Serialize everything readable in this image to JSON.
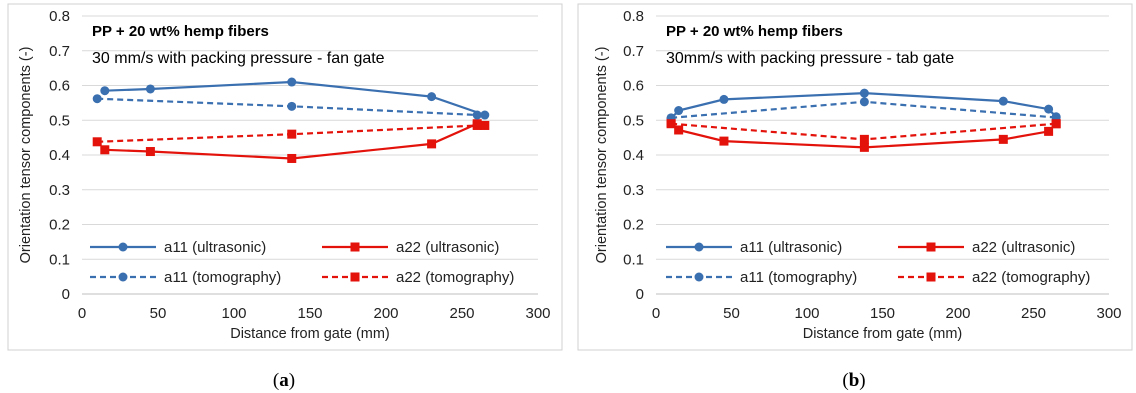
{
  "chart_data": [
    {
      "type": "line",
      "caption": "a",
      "title": "PP + 20 wt% hemp fibers",
      "subtitle": "30 mm/s with packing pressure - fan gate",
      "xlabel": "Distance from gate (mm)",
      "ylabel": "Orientation tensor components (-)",
      "xlim": [
        0,
        300
      ],
      "ylim": [
        0,
        0.8
      ],
      "xticks": [
        "0",
        "50",
        "100",
        "150",
        "200",
        "250",
        "300"
      ],
      "yticks": [
        "0",
        "0.1",
        "0.2",
        "0.3",
        "0.4",
        "0.5",
        "0.6",
        "0.7",
        "0.8"
      ],
      "grid": true,
      "legend_position": "bottom",
      "series": [
        {
          "name": "a11 (ultrasonic)",
          "color": "#3A6FB0",
          "dash": "solid",
          "marker": "circle",
          "x": [
            15,
            45,
            138,
            230,
            265
          ],
          "y": [
            0.585,
            0.59,
            0.61,
            0.568,
            0.515
          ]
        },
        {
          "name": "a22 (ultrasonic)",
          "color": "#E3120B",
          "dash": "solid",
          "marker": "square",
          "x": [
            15,
            45,
            138,
            230,
            260,
            265
          ],
          "y": [
            0.415,
            0.41,
            0.39,
            0.432,
            0.49,
            0.485
          ]
        },
        {
          "name": "a11 (tomography)",
          "color": "#3A6FB0",
          "dash": "dashed",
          "marker": "circle",
          "x": [
            10,
            138,
            260
          ],
          "y": [
            0.562,
            0.54,
            0.515
          ]
        },
        {
          "name": "a22 (tomography)",
          "color": "#E3120B",
          "dash": "dashed",
          "marker": "square",
          "x": [
            10,
            138,
            260
          ],
          "y": [
            0.438,
            0.46,
            0.485
          ]
        }
      ]
    },
    {
      "type": "line",
      "caption": "b",
      "title": "PP + 20 wt% hemp fibers",
      "subtitle": "30mm/s with packing pressure - tab gate",
      "xlabel": "Distance from gate (mm)",
      "ylabel": "Orientation tensor components (-)",
      "xlim": [
        0,
        300
      ],
      "ylim": [
        0,
        0.8
      ],
      "xticks": [
        "0",
        "50",
        "100",
        "150",
        "200",
        "250",
        "300"
      ],
      "yticks": [
        "0",
        "0.1",
        "0.2",
        "0.3",
        "0.4",
        "0.5",
        "0.6",
        "0.7",
        "0.8"
      ],
      "grid": true,
      "legend_position": "bottom",
      "series": [
        {
          "name": "a11 (ultrasonic)",
          "color": "#3A6FB0",
          "dash": "solid",
          "marker": "circle",
          "x": [
            10,
            15,
            45,
            138,
            230,
            260,
            265
          ],
          "y": [
            0.505,
            0.528,
            0.56,
            0.578,
            0.555,
            0.532,
            0.51
          ]
        },
        {
          "name": "a22 (ultrasonic)",
          "color": "#E3120B",
          "dash": "solid",
          "marker": "square",
          "x": [
            10,
            15,
            45,
            138,
            230,
            260,
            265
          ],
          "y": [
            0.493,
            0.472,
            0.44,
            0.422,
            0.445,
            0.468,
            0.49
          ]
        },
        {
          "name": "a11 (tomography)",
          "color": "#3A6FB0",
          "dash": "dashed",
          "marker": "circle",
          "x": [
            10,
            138,
            265
          ],
          "y": [
            0.507,
            0.553,
            0.508
          ]
        },
        {
          "name": "a22 (tomography)",
          "color": "#E3120B",
          "dash": "dashed",
          "marker": "square",
          "x": [
            10,
            138,
            265
          ],
          "y": [
            0.49,
            0.445,
            0.49
          ]
        }
      ]
    }
  ]
}
